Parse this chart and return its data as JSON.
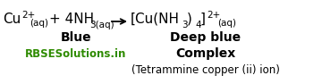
{
  "eq_line": {
    "cu_text": "Cu",
    "cu_sup": "2+",
    "cu_sub": "(aq)",
    "plus_nh": " + 4NH",
    "nh_sub": "3(aq)",
    "bracket_open": "→[Cu(NH",
    "nh3_sub": "3",
    "bracket_close": ")",
    "four_sub": "4",
    "bracket_end": "]",
    "prod_sup": "2+",
    "prod_sub": "(aq)"
  },
  "blue_text": "Blue",
  "deepblue_text": "Deep blue",
  "rbse_text": "RBSESolutions.in",
  "complex_text": "Complex",
  "bottom_text": "(Tetrammine copper (ii) ion)",
  "rbse_color": "#2e8b00",
  "black": "#000000",
  "bg": "#ffffff",
  "fig_w": 3.6,
  "fig_h": 0.94,
  "dpi": 100
}
